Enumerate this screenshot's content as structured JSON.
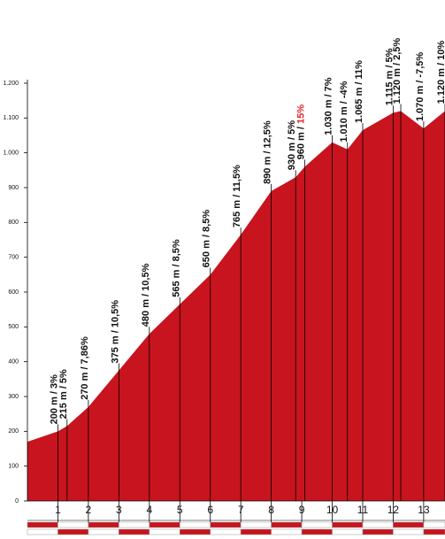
{
  "chart_data": {
    "type": "area",
    "color": "#c8141e",
    "highlight_color": "#e3262c",
    "x": [
      0,
      1,
      1.3,
      2,
      3,
      4,
      5,
      6,
      7,
      8,
      8.8,
      9.1,
      10,
      10.5,
      11,
      12,
      12.25,
      13,
      13.7
    ],
    "values": [
      170,
      200,
      215,
      270,
      375,
      480,
      565,
      650,
      765,
      890,
      930,
      960,
      1030,
      1010,
      1065,
      1115,
      1120,
      1070,
      1120
    ],
    "value_labels": [
      null,
      "200 m / ",
      "215 m / ",
      "270 m / ",
      "375 m / ",
      "480 m / ",
      "565 m / ",
      "650 m / ",
      "765 m / ",
      "890 m / ",
      "930 m / ",
      "960 m / ",
      "1.030 m / ",
      "1.010 m / ",
      "1.065 m / ",
      "1.115 m / ",
      "1.120 m / ",
      "1.070 m / ",
      "1.120 m / "
    ],
    "grades": [
      null,
      "3%",
      "5%",
      "7,86%",
      "10,5%",
      "10,5%",
      "8,5%",
      "8,5%",
      "11,5%",
      "12,5%",
      "5%",
      "15%",
      "7%",
      "-4%",
      "11%",
      "5%",
      "2,5%",
      "-7,5%",
      "10%"
    ],
    "grade_highlight": [
      false,
      false,
      false,
      false,
      false,
      false,
      false,
      false,
      false,
      false,
      false,
      true,
      false,
      false,
      false,
      false,
      false,
      false,
      false
    ],
    "xlim": [
      0,
      13.7
    ],
    "xticks": [
      1,
      2,
      3,
      4,
      5,
      6,
      7,
      8,
      9,
      10,
      11,
      12,
      13
    ],
    "ylim": [
      0,
      1200
    ],
    "yticks": [
      0,
      100,
      200,
      300,
      400,
      500,
      600,
      700,
      800,
      900,
      {
        "value": 1000,
        "label": "1.000"
      },
      {
        "value": 1100,
        "label": "1.100"
      },
      {
        "value": 1200,
        "label": "1.200"
      }
    ]
  }
}
